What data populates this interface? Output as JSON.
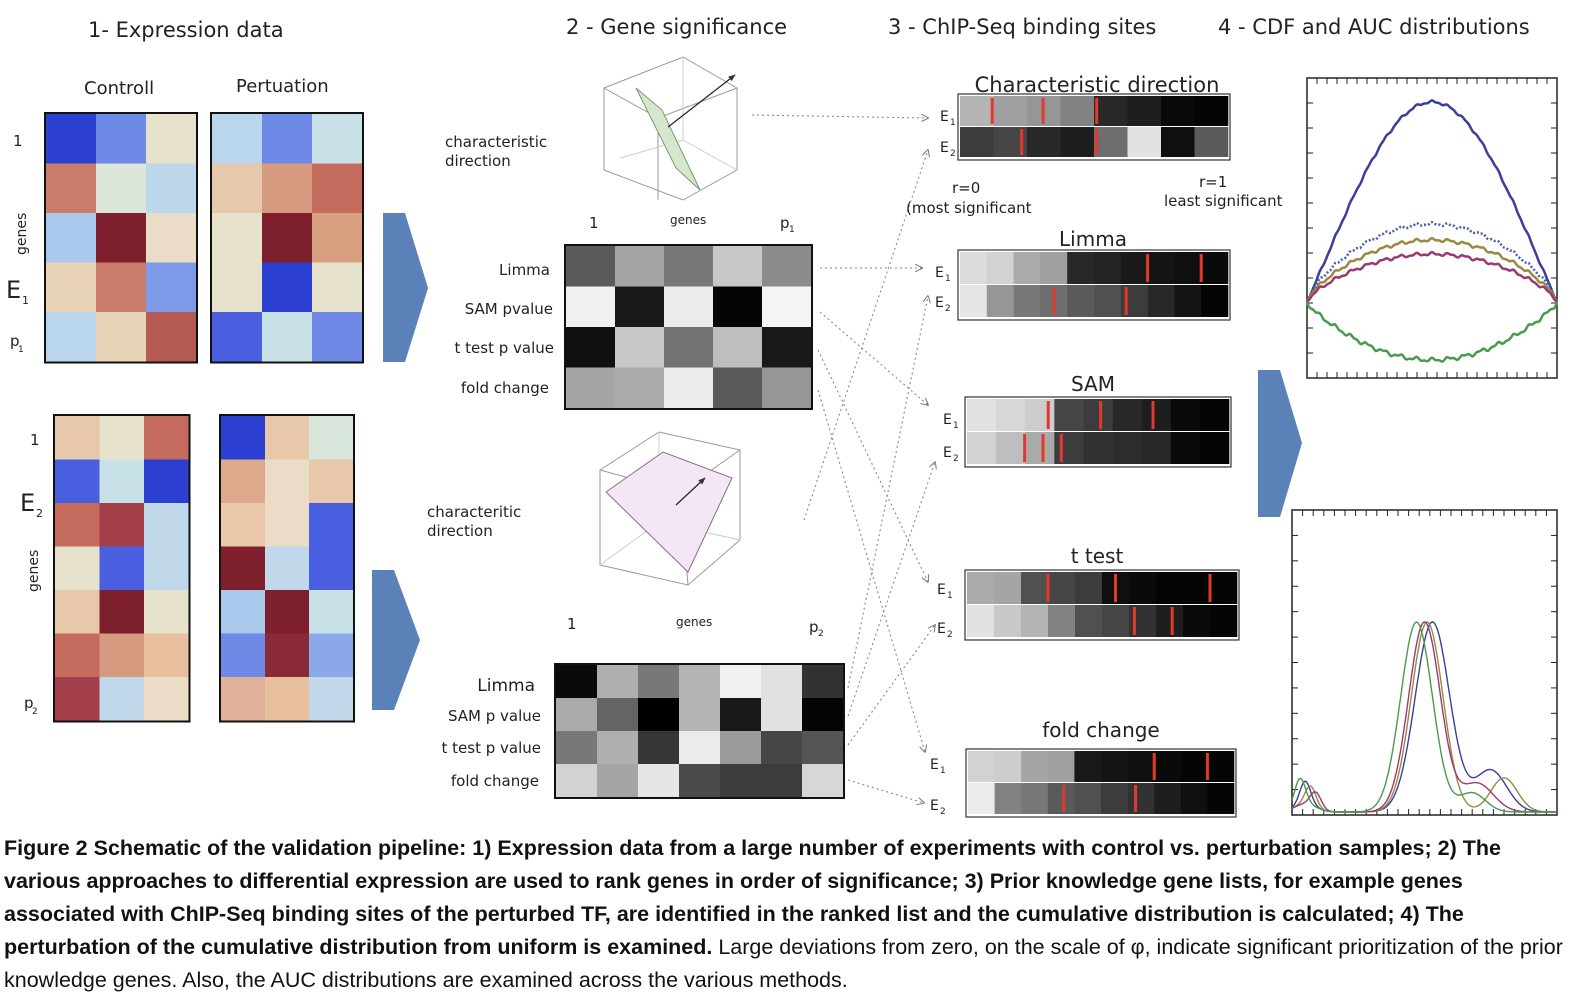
{
  "panel_titles": [
    "1- Expression data",
    "2 - Gene significance",
    "3 - ChIP-Seq binding sites",
    "4 - CDF and AUC distributions"
  ],
  "expression": {
    "col_headers": [
      "Controll",
      "Pertuation"
    ],
    "e1_rows": [
      "1",
      "genes",
      "E",
      "p"
    ],
    "e2_rows": [
      "1",
      "E",
      "genes",
      "p"
    ],
    "e1_colors": {
      "ctrl": [
        [
          "#2b3fd0",
          "#6f8ae6",
          "#e6e2cc"
        ],
        [
          "#c97c6a",
          "#dbe5d8",
          "#bdd7ea"
        ],
        [
          "#a9c8ec",
          "#7d1f2c",
          "#eadcc6"
        ],
        [
          "#e8d3b8",
          "#c97c6a",
          "#7d9ae8"
        ],
        [
          "#b9d6ec",
          "#e8d3b8",
          "#b55a52"
        ]
      ],
      "pert": [
        [
          "#b9d6ec",
          "#6f8ae6",
          "#c8e0e8"
        ],
        [
          "#e6c8aa",
          "#d59a80",
          "#c46b5e"
        ],
        [
          "#e6e2cc",
          "#7d1f2c",
          "#d8a080"
        ],
        [
          "#e6e2cc",
          "#2b3fd0",
          "#e6e2cc"
        ],
        [
          "#4a5fe0",
          "#c8e0e8",
          "#6f8ae6"
        ]
      ]
    },
    "e2_colors": {
      "ctrl": [
        [
          "#e8c8aa",
          "#e6e2cc",
          "#c46b5e"
        ],
        [
          "#4a5fe0",
          "#c8e0e8",
          "#2b3fd0"
        ],
        [
          "#c46b5e",
          "#a33f48",
          "#c0d8ea"
        ],
        [
          "#e6e2cc",
          "#4a5fe0",
          "#c0d8ea"
        ],
        [
          "#e8c8aa",
          "#7d1f2c",
          "#e6e2cc"
        ],
        [
          "#c46b5e",
          "#d59a80",
          "#e8c0a0"
        ],
        [
          "#a33f48",
          "#c0d8ea",
          "#eadcc6"
        ]
      ],
      "pert": [
        [
          "#2b3fd0",
          "#e8c8aa",
          "#d8e6dc"
        ],
        [
          "#dda88c",
          "#eadcc6",
          "#e8c8aa"
        ],
        [
          "#eac8aa",
          "#eadcc6",
          "#4a5fe0"
        ],
        [
          "#7d1f2c",
          "#c0d8ea",
          "#4a5fe0"
        ],
        [
          "#a9c8ec",
          "#7d1f2c",
          "#c8e0e8"
        ],
        [
          "#6f8ae6",
          "#8a2a36",
          "#8aa8ea"
        ],
        [
          "#e0b098",
          "#e8c0a0",
          "#c0d8ea"
        ]
      ]
    }
  },
  "significance": {
    "char_label_1": [
      "characteristic",
      "direction"
    ],
    "char_label_2": [
      "characteritic",
      "direction"
    ],
    "m1_header": [
      "1",
      "genes",
      "p"
    ],
    "m2_header": [
      "1",
      "genes",
      "p"
    ],
    "m1_rows": [
      "Limma",
      "SAM pvalue",
      "t test p value",
      "fold change"
    ],
    "m2_rows": [
      "Limma",
      "SAM p value",
      "t test p value",
      "fold change"
    ],
    "m1_grays": [
      [
        90,
        165,
        120,
        200,
        140
      ],
      [
        240,
        25,
        235,
        5,
        245
      ],
      [
        15,
        200,
        115,
        190,
        25
      ],
      [
        165,
        170,
        235,
        90,
        150
      ]
    ],
    "m2_grays": [
      [
        10,
        175,
        120,
        180,
        240,
        225,
        50
      ],
      [
        170,
        100,
        0,
        180,
        25,
        225,
        5
      ],
      [
        120,
        175,
        55,
        235,
        155,
        70,
        85
      ],
      [
        210,
        165,
        230,
        75,
        60,
        60,
        215
      ]
    ]
  },
  "chipseq": {
    "titles": [
      "Characteristic direction",
      "Limma",
      "SAM",
      "t test",
      "fold change"
    ],
    "row_labels": [
      "E",
      "E"
    ],
    "r0_label": [
      "r=0",
      "(most significant"
    ],
    "r1_label": [
      "r=1",
      "least significant"
    ]
  },
  "auc_colors": {
    "blue": "#3a3f9c",
    "dotted": "#4a5fb0",
    "olive": "#9a8a40",
    "magenta": "#9a3a70",
    "green": "#4a9a50"
  },
  "caption": {
    "bold": "Figure 2 Schematic of the validation pipeline: 1) Expression data from a large number of experiments with control vs. perturbation samples; 2) The various approaches to differential expression are used to rank genes in order of significance; 3) Prior knowledge gene lists, for example genes associated with ChIP-Seq binding sites of the perturbed TF, are identified in the ranked list and the cumulative distribution is calculated; 4) The perturbation of the cumulative distribution from uniform is examined.",
    "normal": " Large deviations from zero, on the scale of φ, indicate significant prioritization of the prior knowledge genes. Also, the AUC distributions are examined across the various methods."
  }
}
